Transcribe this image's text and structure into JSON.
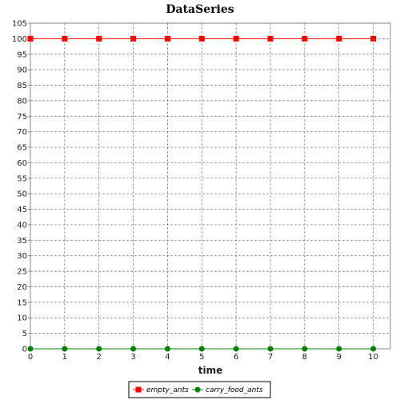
{
  "chart_data": {
    "type": "line",
    "title": "DataSeries",
    "xlabel": "time",
    "ylabel": "",
    "x": [
      0,
      1,
      2,
      3,
      4,
      5,
      6,
      7,
      8,
      9,
      10
    ],
    "xlim": [
      0,
      10.5
    ],
    "ylim": [
      0,
      105
    ],
    "x_ticks": [
      0,
      1,
      2,
      3,
      4,
      5,
      6,
      7,
      8,
      9,
      10
    ],
    "y_ticks": [
      0,
      5,
      10,
      15,
      20,
      25,
      30,
      35,
      40,
      45,
      50,
      55,
      60,
      65,
      70,
      75,
      80,
      85,
      90,
      95,
      100,
      105
    ],
    "grid": true,
    "legend_position": "bottom",
    "series": [
      {
        "name": "empty_ants",
        "color": "#ff0000",
        "marker": "square",
        "values": [
          100,
          100,
          100,
          100,
          100,
          100,
          100,
          100,
          100,
          100,
          100
        ]
      },
      {
        "name": "carry_food_ants",
        "color": "#008000",
        "marker": "circle",
        "values": [
          0,
          0,
          0,
          0,
          0,
          0,
          0,
          0,
          0,
          0,
          0
        ]
      }
    ]
  }
}
